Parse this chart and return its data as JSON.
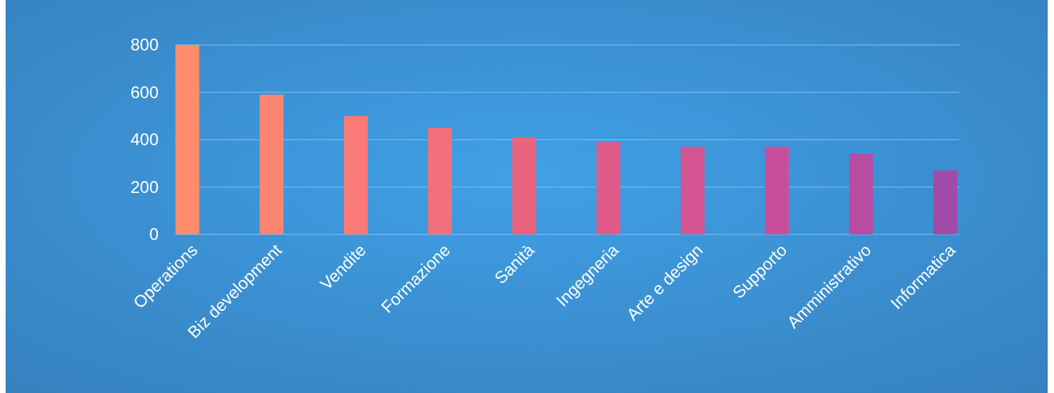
{
  "chart_data": {
    "type": "bar",
    "categories": [
      "Operations",
      "Biz development",
      "Vendite",
      "Formazione",
      "Sanità",
      "Ingegneria",
      "Arte e design",
      "Supporto",
      "Amministrativo",
      "Informatica"
    ],
    "values": [
      800,
      590,
      500,
      450,
      410,
      390,
      370,
      370,
      340,
      270
    ],
    "colors": [
      "#ff8c6b",
      "#fd8672",
      "#f97a76",
      "#f1707c",
      "#e9647f",
      "#df5c89",
      "#d45592",
      "#c8509a",
      "#b84ca2",
      "#a04ba8"
    ],
    "ylim": [
      0,
      800
    ],
    "yticks": [
      0,
      200,
      400,
      600,
      800
    ],
    "grid": "y"
  }
}
